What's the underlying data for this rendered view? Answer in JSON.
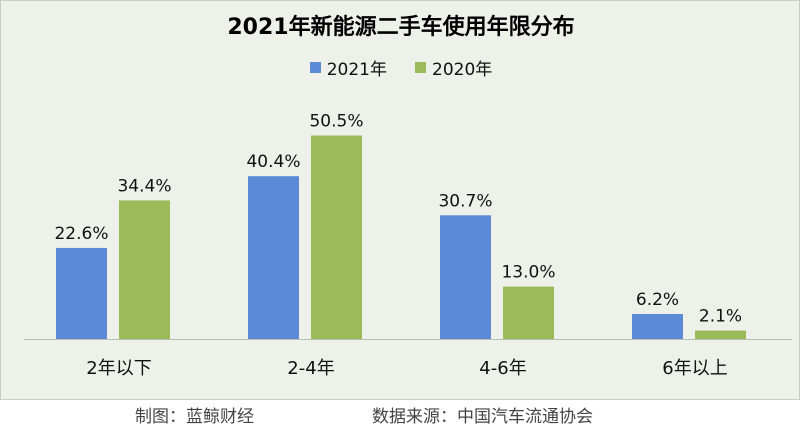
{
  "chart_data": {
    "type": "bar",
    "title": "2021年新能源二手车使用年限分布",
    "categories": [
      "2年以下",
      "2-4年",
      "4-6年",
      "6年以上"
    ],
    "series": [
      {
        "name": "2021年",
        "color": "#5b8bd6",
        "values": [
          22.6,
          40.4,
          30.7,
          6.2
        ]
      },
      {
        "name": "2020年",
        "color": "#9bbb59",
        "values": [
          34.4,
          50.5,
          13.0,
          2.1
        ]
      }
    ],
    "value_suffix": "%",
    "legend_position": "top",
    "grid": false
  },
  "footer": {
    "credit": "制图：蓝鲸财经",
    "source": "数据来源：中国汽车流通协会"
  }
}
